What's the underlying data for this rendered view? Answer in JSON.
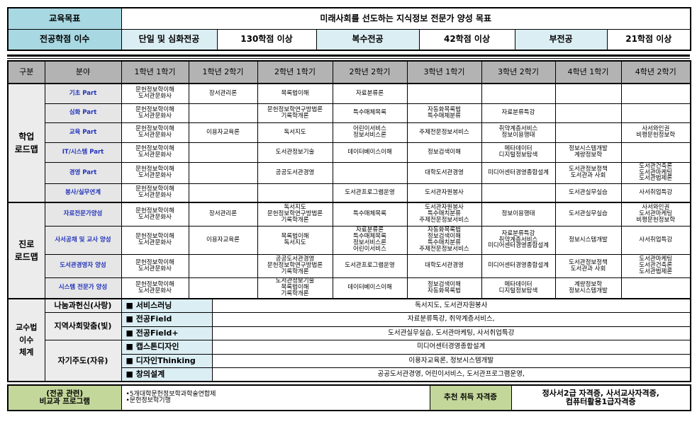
{
  "top": {
    "goal_label": "교육목표",
    "goal_value": "미래사회를 선도하는 지식정보 전문가 양성 목표",
    "credits_label": "전공학점 이수",
    "credits": [
      {
        "type": "단일 및 심화전공",
        "value": "130학점 이상"
      },
      {
        "type": "복수전공",
        "value": "42학점 이상"
      },
      {
        "type": "부전공",
        "value": "21학점 이상"
      }
    ]
  },
  "header": [
    "구분",
    "분야",
    "1학년 1학기",
    "1학년 2학기",
    "2학년 1학기",
    "2학년 2학기",
    "3학년 1학기",
    "3학년 2학기",
    "4학년 1학기",
    "4학년 2학기"
  ],
  "groups": [
    {
      "label": "학업\n로드맵",
      "rows": [
        {
          "field": "기초 Part",
          "cells": [
            "문헌정보학이해\n도서관문화사",
            "장서관리론",
            "목록법이해",
            "자료분류론",
            "",
            "",
            "",
            ""
          ]
        },
        {
          "field": "심화 Part",
          "cells": [
            "문헌정보학이해\n도서관문화사",
            "",
            "문헌정보학연구방법론\n기록학개론",
            "특수매체목록",
            "자동화목록법\n특수매체분류",
            "자료분류특강",
            "",
            ""
          ]
        },
        {
          "field": "교육 Part",
          "cells": [
            "문헌정보학이해\n도서관문화사",
            "이용자교육론",
            "독서지도",
            "어린이서비스\n정보서비스론",
            "주제전문정보서비스",
            "취약계층서비스\n정보이용행태",
            "",
            "사서와인권\n비평문헌정보학"
          ]
        },
        {
          "field": "IT/시스템 Part",
          "cells": [
            "문헌정보학이해\n도서관문화사",
            "",
            "도서관정보기술",
            "데이터베이스이해",
            "정보검색이해",
            "메타데이터\n디지털정보탐색",
            "정보시스템개발\n계량정보학",
            ""
          ]
        },
        {
          "field": "경영 Part",
          "cells": [
            "문헌정보학이해\n도서관문화사",
            "",
            "공공도서관경영",
            "",
            "대학도서관경영",
            "미디어센터경영종합설계",
            "도서관정보정책\n도서관과 사회",
            "도서관건축론\n도서관마케팅\n도서관법제론"
          ]
        },
        {
          "field": "봉사/실무연계",
          "cells": [
            "문헌정보학이해\n도서관문화사",
            "",
            "",
            "도서관프로그램운영",
            "도서관자원봉사",
            "",
            "도서관실무실습",
            "사서취업특강"
          ]
        }
      ]
    },
    {
      "label": "진로\n로드맵",
      "rows": [
        {
          "field": "자료전문가양성",
          "cells": [
            "문헌정보학이해\n도서관문화사",
            "장서관리론",
            "독서지도\n문헌정보학연구방법론\n기록학개론",
            "특수매체목록",
            "도서관자원봉사\n특수매치분류\n주제전문정보서비스",
            "정보이용행태",
            "도서관실무실습",
            "사서와인권\n도서관마케팅\n비평문헌정보학"
          ]
        },
        {
          "field": "사서공채 및 교사 양성",
          "cells": [
            "문헌정보학이해\n도서관문화사",
            "이용자교육론",
            "목록법이해\n독서지도",
            "자료분류론\n특수매체목록\n정보서비스론\n어린이서비스",
            "자동화목록법\n정보검색이해\n특수매치분류\n주제전문정보서비스",
            "자료분류특강\n취약계층서비스\n미디어센터경영종합설계",
            "정보시스템개발",
            "사서취업특강"
          ]
        },
        {
          "field": "도서관경영자 양성",
          "cells": [
            "문헌정보학이해\n도서관문화사",
            "",
            "공공도서관경영\n문헌정보학연구방법론\n기록학개론",
            "도서관프로그램운영",
            "대학도서관경영",
            "미디어센터경영종합설계",
            "도서관정보정책\n도서관과 사회",
            "도서관마케팅\n도서관건축론\n도서관법제론"
          ]
        },
        {
          "field": "시스템 전문가 양성",
          "cells": [
            "문헌정보학이해\n도서관문화사",
            "",
            "도서관정보기술\n목록법이해\n기록학개론",
            "데이터베이스이해",
            "정보검색이해\n자동화목록법",
            "메타데이터\n디지털정보탐색",
            "계량정보학\n정보시스템개발",
            ""
          ]
        }
      ]
    }
  ],
  "teaching": {
    "label": "교수법\n이수\n체계",
    "categories": [
      {
        "name": "나눔과헌신(사랑)",
        "items": [
          {
            "method": "■ 서비스러닝",
            "courses": "독서지도, 도서관자원봉사"
          }
        ]
      },
      {
        "name": "지역사회맞춤(빛)",
        "items": [
          {
            "method": "■ 전공Field",
            "courses": "자료분류특강, 취약계층서비스,"
          },
          {
            "method": "■ 전공Field+",
            "courses": "도서관실무실습, 도서관마케팅, 사서취업특강"
          }
        ]
      },
      {
        "name": "자기주도(자유)",
        "items": [
          {
            "method": "■ 캡스톤디자인",
            "courses": "미디어센터경영종합설계"
          },
          {
            "method": "■ 디자인Thinking",
            "courses": "이용자교육론, 정보시스템개발"
          },
          {
            "method": "■ 창의설계",
            "courses": "공공도서관경영, 어린이서비스, 도서관프로그램운영,"
          }
        ]
      }
    ]
  },
  "bottom": {
    "program_label": "(전공 관련)\n비교과 프로그램",
    "programs": [
      "•5개대학문헌정보학과학술연합제",
      "•문헌정보학기행"
    ],
    "cert_label": "추천 취득 자격증",
    "certs": "정사서2급 자격증, 사서교사자격증,\n컴퓨터활용1급자격증"
  },
  "colors": {
    "teal": "#a8d8e2",
    "light_blue": "#dbeef3",
    "header_gray": "#b3b3b3",
    "green": "#c4d79b",
    "field_blue": "#2233bb"
  }
}
